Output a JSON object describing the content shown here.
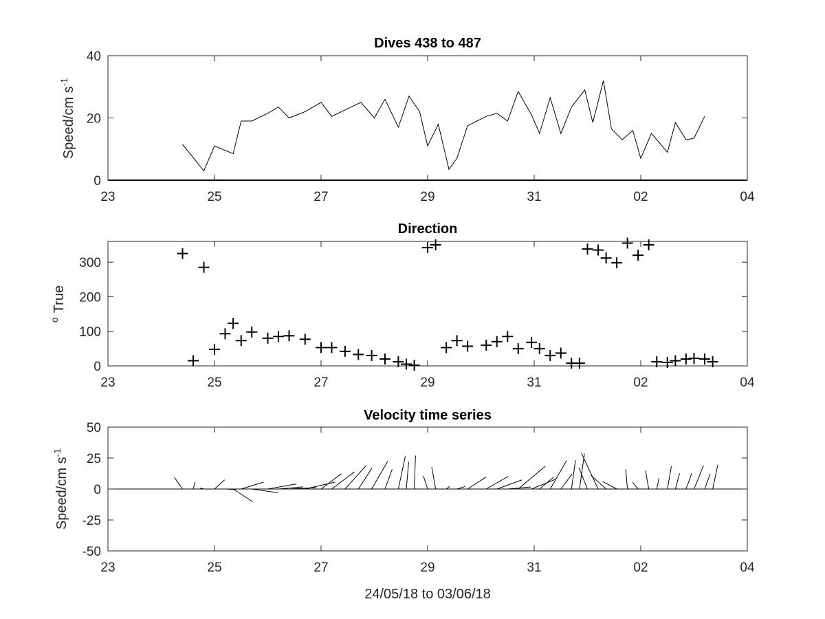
{
  "chart_data": [
    {
      "type": "line",
      "title": "Dives 438 to 487",
      "ylabel": "Speed/cm s",
      "ylabel_superscript": "-1",
      "xlabel": "",
      "ylim": [
        0,
        40
      ],
      "yticks": [
        "0",
        "20",
        "40"
      ],
      "xticks": [
        "23",
        "25",
        "27",
        "29",
        "31",
        "02",
        "04"
      ],
      "x_days": [
        24.4,
        24.8,
        25.0,
        25.35,
        25.5,
        25.7,
        26.0,
        26.2,
        26.4,
        26.7,
        27.0,
        27.2,
        27.5,
        27.75,
        28.0,
        28.2,
        28.45,
        28.65,
        28.85,
        29.0,
        29.2,
        29.4,
        29.55,
        29.75,
        30.1,
        30.3,
        30.5,
        30.7,
        30.95,
        31.1,
        31.3,
        31.5,
        31.7,
        31.95,
        32.1,
        32.3,
        32.45,
        32.65,
        32.85,
        33.0,
        33.2,
        33.5,
        33.65,
        33.85,
        34.0,
        34.2
      ],
      "values": [
        11.5,
        3,
        11,
        8.5,
        19,
        19,
        21.5,
        23.5,
        20,
        22,
        25,
        20.5,
        23,
        25,
        20,
        26,
        17,
        27,
        22,
        11,
        18,
        3.5,
        7,
        17.5,
        20.5,
        21.5,
        19,
        28.5,
        21,
        15,
        26.5,
        15,
        23.5,
        29,
        18.5,
        32,
        16.5,
        13,
        16,
        7,
        15,
        9,
        18.5,
        13,
        13.5,
        20.5
      ]
    },
    {
      "type": "scatter",
      "title": "Direction",
      "ylabel": "True",
      "ylabel_superscript": "o",
      "xlabel": "",
      "ylim": [
        0,
        360
      ],
      "yticks": [
        "0",
        "100",
        "200",
        "300"
      ],
      "xticks": [
        "23",
        "25",
        "27",
        "29",
        "31",
        "02",
        "04"
      ],
      "x_days": [
        24.4,
        24.6,
        24.8,
        25.0,
        25.2,
        25.35,
        25.5,
        25.7,
        26.0,
        26.2,
        26.4,
        26.7,
        27.0,
        27.2,
        27.45,
        27.7,
        27.95,
        28.2,
        28.45,
        28.6,
        28.75,
        29.0,
        29.15,
        29.35,
        29.55,
        29.75,
        30.1,
        30.3,
        30.5,
        30.7,
        30.95,
        31.1,
        31.3,
        31.5,
        31.7,
        31.85,
        32.0,
        32.2,
        32.35,
        32.55,
        32.75,
        32.95,
        33.15,
        33.3,
        33.5,
        33.65,
        33.85,
        34.0,
        34.2,
        34.35
      ],
      "values": [
        325,
        15,
        285,
        48,
        93,
        123,
        73,
        98,
        80,
        85,
        87,
        77,
        53,
        53,
        42,
        33,
        30,
        20,
        12,
        5,
        2,
        342,
        350,
        53,
        73,
        57,
        60,
        70,
        85,
        50,
        68,
        50,
        30,
        37,
        8,
        8,
        338,
        335,
        312,
        298,
        355,
        320,
        350,
        12,
        10,
        15,
        20,
        22,
        20,
        12
      ]
    },
    {
      "type": "line",
      "title": "Velocity time series",
      "ylabel": "Speed/cm s",
      "ylabel_superscript": "-1",
      "xlabel": "24/05/18 to 03/06/18",
      "ylim": [
        -50,
        50
      ],
      "yticks": [
        "-50",
        "-25",
        "0",
        "25",
        "50"
      ],
      "xticks": [
        "23",
        "25",
        "27",
        "29",
        "31",
        "02",
        "04"
      ],
      "x_days": [
        24.4,
        24.6,
        24.8,
        25.0,
        25.2,
        25.35,
        25.5,
        25.7,
        26.0,
        26.2,
        26.4,
        26.7,
        27.0,
        27.2,
        27.45,
        27.7,
        27.95,
        28.2,
        28.45,
        28.6,
        28.75,
        29.0,
        29.15,
        29.35,
        29.55,
        29.75,
        30.1,
        30.3,
        30.5,
        30.7,
        30.95,
        31.1,
        31.3,
        31.5,
        31.7,
        31.85,
        32.0,
        32.2,
        32.35,
        32.55,
        32.75,
        32.95,
        33.15,
        33.3,
        33.5,
        33.65,
        33.85,
        34.0,
        34.2,
        34.35
      ],
      "speed": [
        11.5,
        6,
        3,
        11,
        8.5,
        19,
        19,
        21.5,
        23.5,
        20,
        22,
        25,
        20.5,
        23,
        25,
        20,
        26,
        17,
        27,
        22,
        27,
        11,
        18,
        3.5,
        7,
        17.5,
        20.5,
        21.5,
        19,
        28.5,
        21,
        15,
        26.5,
        15,
        23.5,
        29,
        18.5,
        32,
        16.5,
        13,
        16,
        7,
        15,
        9,
        18.5,
        13,
        13.5,
        20.5,
        13,
        20
      ],
      "direction_deg_true": [
        325,
        15,
        285,
        48,
        93,
        123,
        73,
        98,
        80,
        85,
        87,
        77,
        53,
        53,
        42,
        33,
        30,
        20,
        12,
        5,
        2,
        342,
        350,
        53,
        73,
        57,
        60,
        70,
        85,
        50,
        68,
        50,
        30,
        37,
        8,
        8,
        338,
        335,
        312,
        298,
        355,
        320,
        350,
        12,
        10,
        15,
        20,
        22,
        20,
        12
      ]
    }
  ]
}
